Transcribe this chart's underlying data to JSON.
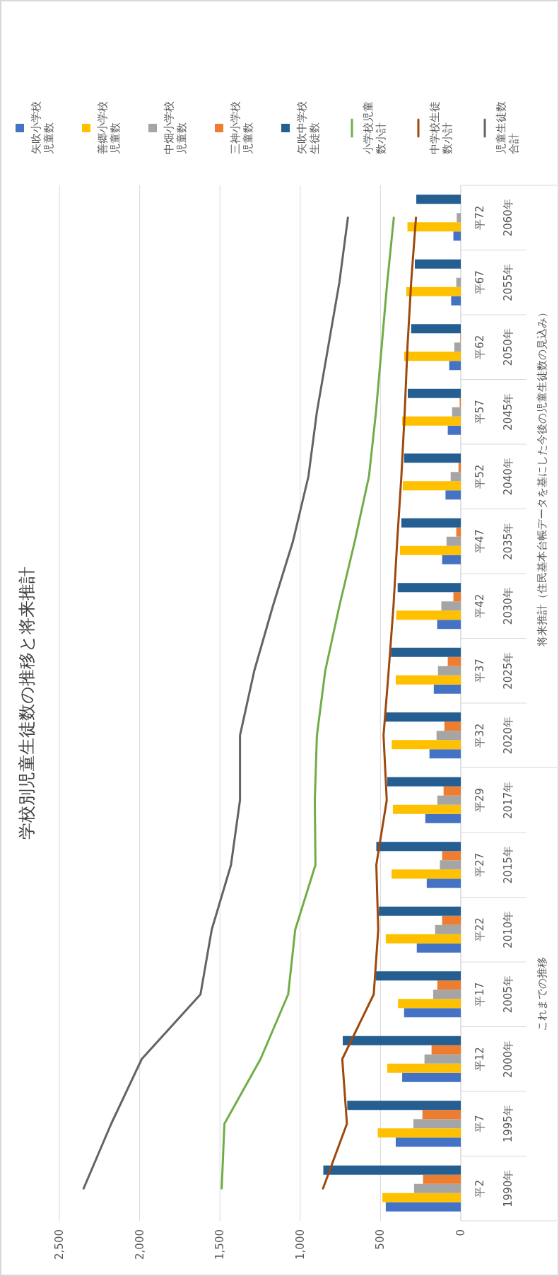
{
  "chart_data": {
    "type": "bar",
    "orientation": "horizontal",
    "title": "学校別児童生徒数の推移と将来推計",
    "categories": [
      "2060年",
      "2055年",
      "2050年",
      "2045年",
      "2040年",
      "2035年",
      "2030年",
      "2025年",
      "2020年",
      "2017年",
      "2015年",
      "2010年",
      "2005年",
      "2000年",
      "1995年",
      "1990年"
    ],
    "series": [
      {
        "name": "矢吹小学校児童数",
        "color": "#4472c4",
        "values": [
          46,
          60,
          72,
          81,
          95,
          116,
          147,
          168,
          195,
          221,
          212,
          274,
          353,
          365,
          405,
          467
        ]
      },
      {
        "name": "善郷小学校児童数",
        "color": "#ffc000",
        "values": [
          332,
          339,
          353,
          365,
          361,
          379,
          402,
          405,
          430,
          423,
          431,
          467,
          391,
          458,
          517,
          488
        ]
      },
      {
        "name": "中畑小学校児童数",
        "color": "#a5a5a5",
        "values": [
          25,
          28,
          40,
          54,
          63,
          89,
          121,
          142,
          151,
          146,
          130,
          160,
          172,
          226,
          295,
          291
        ]
      },
      {
        "name": "三神小学校児童数",
        "color": "#ed7d31",
        "values": [
          0,
          0,
          3,
          7,
          14,
          28,
          46,
          81,
          102,
          107,
          116,
          116,
          146,
          182,
          239,
          235
        ]
      },
      {
        "name": "矢吹中学校生徒数",
        "color": "#255e91",
        "values": [
          277,
          286,
          309,
          330,
          353,
          370,
          393,
          435,
          475,
          458,
          526,
          510,
          528,
          735,
          707,
          856
        ]
      },
      {
        "name": "小学校児童数小計",
        "type": "line",
        "color": "#70ad47",
        "values": [
          417,
          458,
          493,
          528,
          572,
          660,
          756,
          844,
          896,
          909,
          905,
          1031,
          1075,
          1247,
          1472,
          1489
        ]
      },
      {
        "name": "中学校生徒数小計",
        "type": "line",
        "color": "#9e480e",
        "values": [
          279,
          309,
          332,
          349,
          370,
          396,
          419,
          449,
          481,
          461,
          526,
          514,
          542,
          738,
          709,
          858
        ]
      },
      {
        "name": "児童生徒数合計",
        "type": "line",
        "color": "#636363",
        "values": [
          703,
          756,
          826,
          896,
          949,
          1045,
          1170,
          1286,
          1375,
          1375,
          1431,
          1551,
          1621,
          1987,
          2177,
          2349
        ]
      }
    ],
    "xlim": [
      2500,
      0
    ],
    "xticks": [
      {
        "value": 2500,
        "label": "2,500"
      },
      {
        "value": 2000,
        "label": "2,000"
      },
      {
        "value": 1500,
        "label": "1,500"
      },
      {
        "value": 1000,
        "label": "1,000"
      },
      500,
      0
    ],
    "grid": "x",
    "legend": "top",
    "annotations": [
      "平72",
      "平67",
      "平62",
      "平57",
      "平52",
      "平47",
      "平42",
      "平37",
      "平32",
      "平29",
      "平27",
      "平22",
      "平17",
      "平12",
      "平7",
      "平2",
      "将来推計（住民基本台帳データを基にした今後の児童生徒数の見込み）",
      "これまでの推移"
    ]
  }
}
